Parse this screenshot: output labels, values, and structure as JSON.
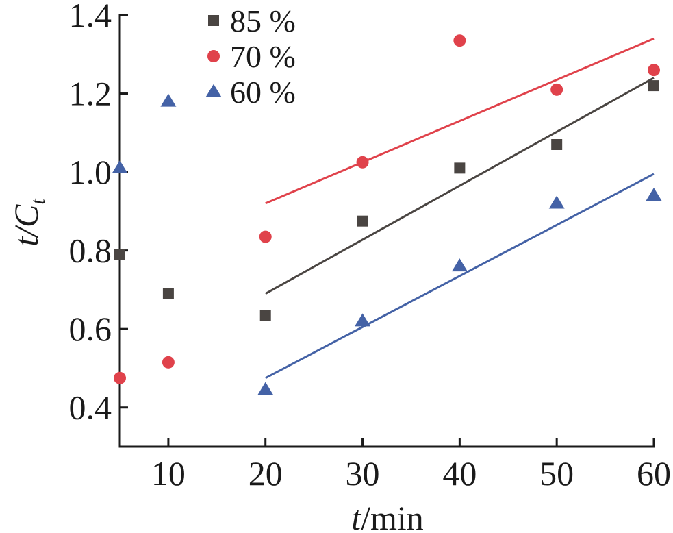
{
  "chart_data": {
    "type": "scatter",
    "xlabel": {
      "var": "t",
      "unit": "/min"
    },
    "ylabel": {
      "var": "t/C",
      "sub": "t"
    },
    "xlim": [
      5,
      60
    ],
    "ylim": [
      0.3,
      1.4
    ],
    "x_ticks": [
      10,
      20,
      30,
      40,
      50,
      60
    ],
    "x_tick_labels": [
      "10",
      "20",
      "30",
      "40",
      "50",
      "60"
    ],
    "y_ticks": [
      0.4,
      0.6,
      0.8,
      1.0,
      1.2,
      1.4
    ],
    "y_tick_labels": [
      "0.4",
      "0.6",
      "0.8",
      "1.0",
      "1.2",
      "1.4"
    ],
    "grid": false,
    "legend_position": "top-left",
    "series": [
      {
        "name": "85 %",
        "marker": "square",
        "color": "#4a4542",
        "points": [
          [
            5,
            0.79
          ],
          [
            10,
            0.69
          ],
          [
            20,
            0.635
          ],
          [
            30,
            0.875
          ],
          [
            40,
            1.01
          ],
          [
            50,
            1.07
          ],
          [
            60,
            1.22
          ]
        ],
        "fit_line": [
          [
            20,
            0.69
          ],
          [
            60,
            1.24
          ]
        ]
      },
      {
        "name": "70 %",
        "marker": "circle",
        "color": "#e0424b",
        "points": [
          [
            5,
            0.475
          ],
          [
            10,
            0.515
          ],
          [
            20,
            0.835
          ],
          [
            30,
            1.025
          ],
          [
            40,
            1.335
          ],
          [
            50,
            1.21
          ],
          [
            60,
            1.26
          ]
        ],
        "fit_line": [
          [
            20,
            0.92
          ],
          [
            60,
            1.34
          ]
        ]
      },
      {
        "name": "60 %",
        "marker": "triangle",
        "color": "#4462a6",
        "points": [
          [
            5,
            1.01
          ],
          [
            10,
            1.18
          ],
          [
            20,
            0.445
          ],
          [
            30,
            0.62
          ],
          [
            40,
            0.76
          ],
          [
            50,
            0.92
          ],
          [
            60,
            0.94
          ]
        ],
        "fit_line": [
          [
            20,
            0.475
          ],
          [
            60,
            0.995
          ]
        ]
      }
    ]
  }
}
